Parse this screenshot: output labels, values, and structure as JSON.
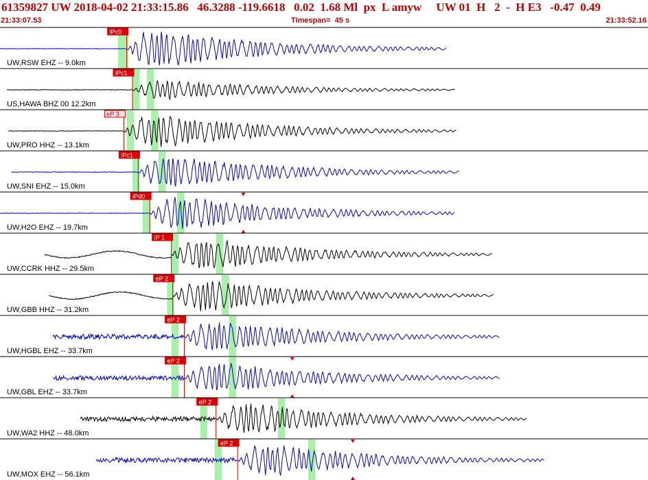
{
  "header": {
    "title": "61359827 UW 2018-04-02 21:33:15.86   46.3288 -119.6618   0.02  1.68 Ml  px  L amyw     UW 01  H   2  -  H E3   -0.47  0.49",
    "start_time": "21:33:07.53",
    "timespan": "Timespan=  45 s",
    "end_time": "21:33:52.16"
  },
  "colors": {
    "blue_trace": "#0000cc",
    "black_trace": "#000000",
    "pick_red": "#dd0000",
    "window_green": "#a8f0a8",
    "header_red": "#c00000"
  },
  "traces": [
    {
      "label": "UW,RSW EHZ -- 9.0km",
      "pick": "iPc0",
      "color": "blue",
      "onset_s": 8.8,
      "window_s": [
        8.2,
        8.9
      ],
      "end_s": 31.0,
      "amp": 1.0,
      "pre": "flat",
      "pre_start_s": 0.0
    },
    {
      "label": "US,HAWA BHZ 00 12.2km",
      "pick": "iPc1",
      "color": "black",
      "onset_s": 9.2,
      "window_s": [
        9.2,
        9.7,
        10.2,
        10.7
      ],
      "end_s": 31.6,
      "amp": 0.55,
      "pre": "flat",
      "pre_start_s": 0.5
    },
    {
      "label": "UW,PRO HHZ -- 13.1km",
      "pick": "eP 3",
      "color": "black",
      "onset_s": 8.6,
      "window_s": [
        8.8,
        9.3,
        10.5,
        11.0
      ],
      "end_s": 31.7,
      "amp": 0.9,
      "pre": "flat",
      "pre_start_s": 0.6
    },
    {
      "label": "UW,SNI EHZ -- 15.0km",
      "pick": "iPc1",
      "color": "blue",
      "onset_s": 9.6,
      "window_s": [
        9.2,
        9.7,
        11.0,
        11.5
      ],
      "end_s": 31.9,
      "amp": 0.9,
      "pre": "flat",
      "pre_start_s": 0.8
    },
    {
      "label": "UW,H2O EHZ -- 19.7km",
      "pick": "iPd0",
      "color": "blue",
      "onset_s": 10.4,
      "window_s": [
        9.9,
        10.4,
        12.3,
        12.8
      ],
      "end_s": 31.6,
      "amp": 0.9,
      "pre": "flat",
      "pre_start_s": 0.0,
      "markers_s": [
        16.9
      ]
    },
    {
      "label": "UW,CCRK HHZ -- 29.5km",
      "pick": "iP 1",
      "color": "black",
      "onset_s": 11.9,
      "window_s": [
        11.9,
        12.4,
        15.0,
        15.5
      ],
      "end_s": 34.2,
      "amp": 0.85,
      "pre": "wave",
      "pre_start_s": 3.1
    },
    {
      "label": "UW,GBB HHZ -- 31.2km",
      "pick": "eP 2",
      "color": "black",
      "onset_s": 12.0,
      "window_s": [
        11.6,
        12.1,
        15.4,
        15.9
      ],
      "end_s": 34.3,
      "amp": 0.85,
      "pre": "wave",
      "pre_start_s": 3.4
    },
    {
      "label": "UW,HGBL EHZ -- 33.7km",
      "pick": "eP 2",
      "color": "blue",
      "onset_s": 12.8,
      "window_s": [
        11.9,
        12.4,
        15.9,
        16.4
      ],
      "end_s": 34.7,
      "amp": 0.85,
      "pre": "noise",
      "pre_start_s": 3.7
    },
    {
      "label": "UW,GBL EHZ -- 33.7km",
      "pick": "eP 2",
      "color": "blue",
      "onset_s": 12.8,
      "window_s": [
        11.9,
        12.4,
        15.9,
        16.4
      ],
      "end_s": 34.7,
      "amp": 0.85,
      "pre": "noise",
      "pre_start_s": 3.7,
      "markers_s": [
        20.3
      ]
    },
    {
      "label": "UW,WA2 HHZ -- 48.0km",
      "pick": "eP 2",
      "color": "black",
      "onset_s": 15.0,
      "window_s": [
        13.9,
        14.4,
        19.3,
        19.8
      ],
      "end_s": 36.6,
      "amp": 0.85,
      "pre": "noise",
      "pre_start_s": 5.6
    },
    {
      "label": "UW,MOX EHZ -- 56.1km",
      "pick": "eP 2",
      "color": "blue",
      "onset_s": 16.5,
      "window_s": [
        14.9,
        15.4,
        21.4,
        21.9
      ],
      "end_s": 37.8,
      "amp": 0.85,
      "pre": "noise",
      "pre_start_s": 6.7,
      "markers_s": [
        24.5
      ]
    }
  ]
}
